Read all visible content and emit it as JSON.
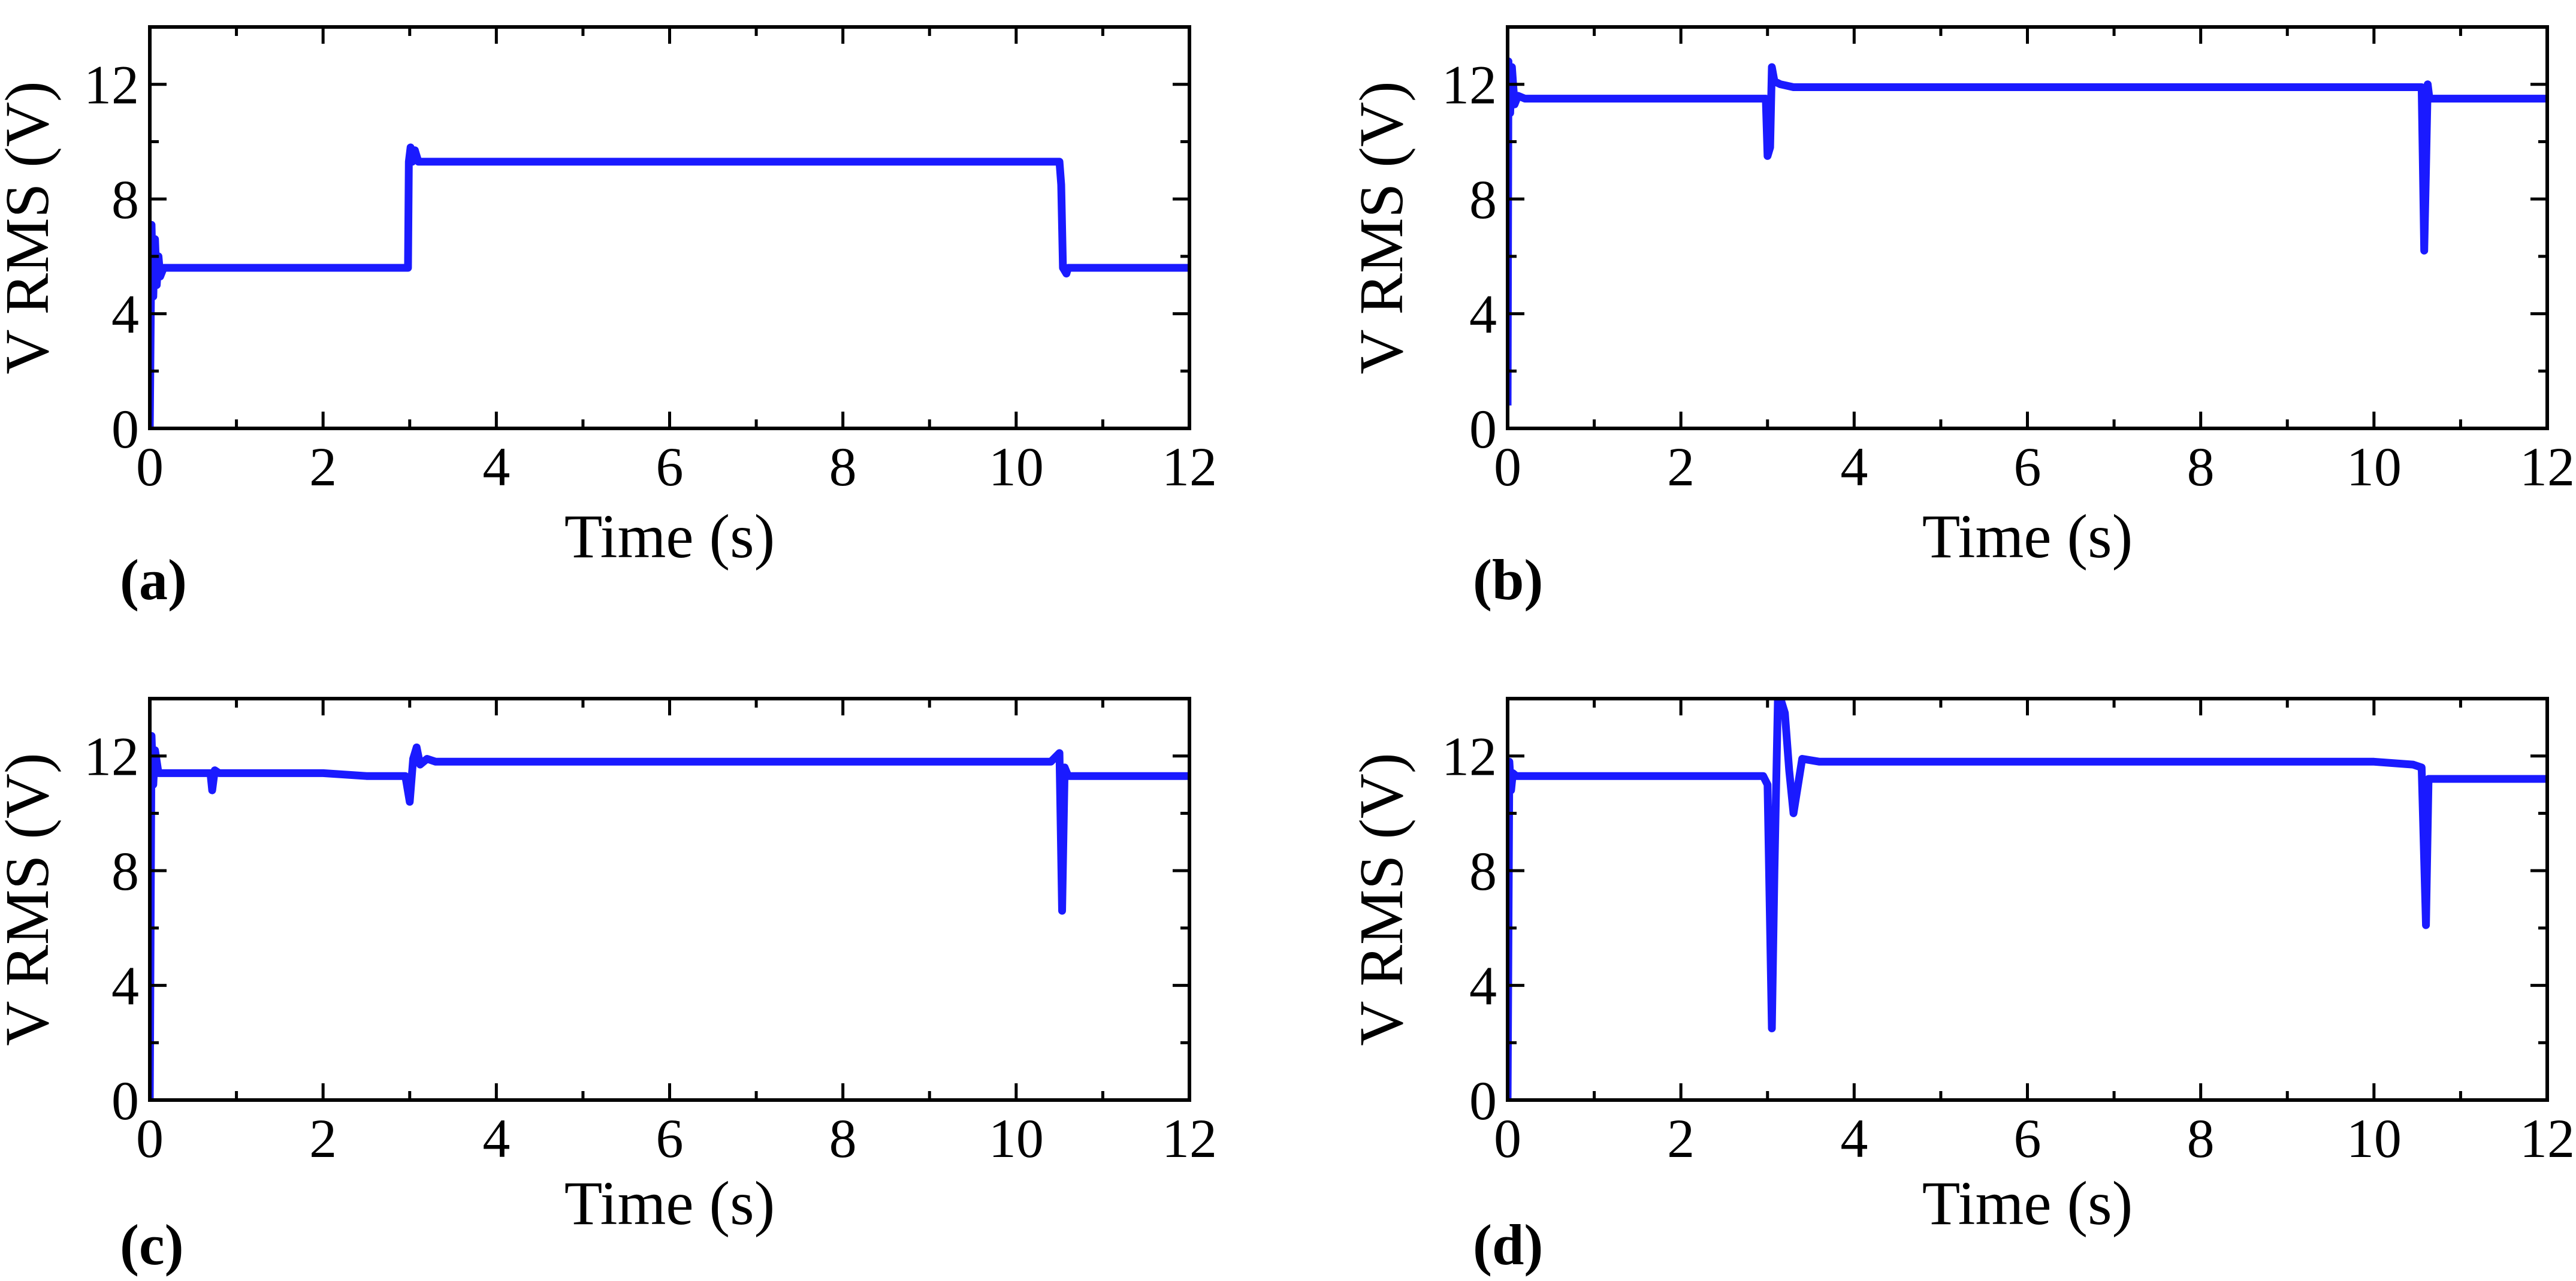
{
  "chart_data": [
    {
      "type": "line",
      "panel_label": "(a)",
      "xlabel": "Time (s)",
      "ylabel": "V RMS (V)",
      "xlim": [
        0,
        12
      ],
      "ylim": [
        0,
        14
      ],
      "xticks": [
        "0",
        "2",
        "4",
        "6",
        "8",
        "10",
        "12"
      ],
      "yticks": [
        "0",
        "4",
        "8",
        "12"
      ],
      "series": [
        {
          "name": "V RMS",
          "color": "#1a1aff",
          "x": [
            0,
            0.02,
            0.04,
            0.06,
            0.08,
            0.1,
            0.12,
            0.16,
            0.25,
            0.5,
            1.0,
            1.5,
            2.0,
            2.5,
            2.98,
            2.99,
            3.01,
            3.03,
            3.06,
            3.1,
            3.2,
            4.0,
            5.0,
            6.0,
            7.0,
            8.0,
            9.0,
            10.0,
            10.45,
            10.5,
            10.52,
            10.54,
            10.58,
            10.6,
            11.0,
            11.5,
            12.0
          ],
          "y": [
            0,
            7.1,
            4.6,
            6.6,
            5.0,
            6.0,
            5.3,
            5.6,
            5.6,
            5.6,
            5.6,
            5.6,
            5.6,
            5.6,
            5.6,
            9.3,
            9.8,
            9.3,
            9.7,
            9.3,
            9.3,
            9.3,
            9.3,
            9.3,
            9.3,
            9.3,
            9.3,
            9.3,
            9.3,
            9.3,
            8.5,
            5.6,
            5.4,
            5.6,
            5.6,
            5.6,
            5.6
          ]
        }
      ]
    },
    {
      "type": "line",
      "panel_label": "(b)",
      "xlabel": "Time (s)",
      "ylabel": "V RMS (V)",
      "xlim": [
        0,
        12
      ],
      "ylim": [
        0,
        14
      ],
      "xticks": [
        "0",
        "2",
        "4",
        "6",
        "8",
        "10",
        "12"
      ],
      "yticks": [
        "0",
        "4",
        "8",
        "12"
      ],
      "series": [
        {
          "name": "V RMS",
          "color": "#1a1aff",
          "x": [
            0,
            0.01,
            0.03,
            0.05,
            0.08,
            0.12,
            0.2,
            0.5,
            1.0,
            1.5,
            2.0,
            2.5,
            2.95,
            2.98,
            3.0,
            3.03,
            3.05,
            3.08,
            3.15,
            3.3,
            4.0,
            5.0,
            6.0,
            7.0,
            8.0,
            9.0,
            10.0,
            10.5,
            10.55,
            10.58,
            10.6,
            10.62,
            10.64,
            10.7,
            11.0,
            11.5,
            12.0
          ],
          "y": [
            0.8,
            12.8,
            11.0,
            12.6,
            11.3,
            11.6,
            11.5,
            11.5,
            11.5,
            11.5,
            11.5,
            11.5,
            11.5,
            11.5,
            9.5,
            9.8,
            12.6,
            12.1,
            12.0,
            11.9,
            11.9,
            11.9,
            11.9,
            11.9,
            11.9,
            11.9,
            11.9,
            11.9,
            11.9,
            6.2,
            9.0,
            12.0,
            11.5,
            11.5,
            11.5,
            11.5,
            11.5
          ]
        }
      ]
    },
    {
      "type": "line",
      "panel_label": "(c)",
      "xlabel": "Time (s)",
      "ylabel": "V RMS (V)",
      "xlim": [
        0,
        12
      ],
      "ylim": [
        0,
        14
      ],
      "xticks": [
        "0",
        "2",
        "4",
        "6",
        "8",
        "10",
        "12"
      ],
      "yticks": [
        "0",
        "4",
        "8",
        "12"
      ],
      "series": [
        {
          "name": "V RMS",
          "color": "#1a1aff",
          "x": [
            0,
            0.02,
            0.04,
            0.06,
            0.1,
            0.2,
            0.5,
            0.7,
            0.72,
            0.75,
            0.8,
            1.0,
            1.5,
            2.0,
            2.5,
            2.95,
            3.0,
            3.04,
            3.08,
            3.12,
            3.2,
            3.3,
            4.0,
            5.0,
            6.0,
            7.0,
            8.0,
            9.0,
            10.0,
            10.4,
            10.5,
            10.53,
            10.56,
            10.6,
            10.7,
            11.0,
            11.5,
            12.0
          ],
          "y": [
            0,
            12.7,
            11.0,
            12.2,
            11.4,
            11.4,
            11.4,
            11.4,
            10.8,
            11.5,
            11.4,
            11.4,
            11.4,
            11.4,
            11.3,
            11.3,
            10.4,
            11.9,
            12.3,
            11.7,
            11.9,
            11.8,
            11.8,
            11.8,
            11.8,
            11.8,
            11.8,
            11.8,
            11.8,
            11.8,
            12.1,
            6.6,
            11.6,
            11.3,
            11.3,
            11.3,
            11.3,
            11.3
          ]
        }
      ]
    },
    {
      "type": "line",
      "panel_label": "(d)",
      "xlabel": "Time (s)",
      "ylabel": "V RMS (V)",
      "xlim": [
        0,
        12
      ],
      "ylim": [
        0,
        14
      ],
      "xticks": [
        "0",
        "2",
        "4",
        "6",
        "8",
        "10",
        "12"
      ],
      "yticks": [
        "0",
        "4",
        "8",
        "12"
      ],
      "series": [
        {
          "name": "V RMS",
          "color": "#1a1aff",
          "x": [
            0,
            0.02,
            0.04,
            0.06,
            0.1,
            0.2,
            0.5,
            1.0,
            1.5,
            2.0,
            2.5,
            2.95,
            3.0,
            3.05,
            3.08,
            3.12,
            3.15,
            3.2,
            3.25,
            3.3,
            3.4,
            3.6,
            4.0,
            5.0,
            6.0,
            7.0,
            8.0,
            9.0,
            10.0,
            10.45,
            10.55,
            10.6,
            10.63,
            10.7,
            11.0,
            11.5,
            12.0
          ],
          "y": [
            0,
            11.8,
            10.8,
            11.4,
            11.3,
            11.3,
            11.3,
            11.3,
            11.3,
            11.3,
            11.3,
            11.3,
            11.0,
            2.5,
            8.0,
            14.0,
            14.0,
            13.5,
            11.5,
            10.0,
            11.9,
            11.8,
            11.8,
            11.8,
            11.8,
            11.8,
            11.8,
            11.8,
            11.8,
            11.7,
            11.6,
            6.1,
            11.2,
            11.2,
            11.2,
            11.2,
            11.2
          ]
        }
      ]
    }
  ]
}
